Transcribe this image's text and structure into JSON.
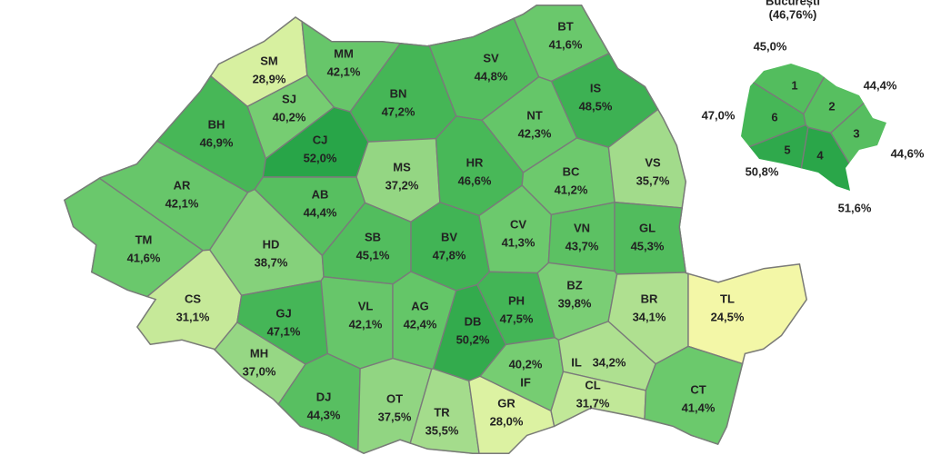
{
  "map": {
    "regions": {
      "codes": [
        "SM",
        "MM",
        "BT",
        "SV",
        "IS",
        "SJ",
        "BN",
        "BH",
        "CJ",
        "NT",
        "MS",
        "HR",
        "BC",
        "VS",
        "AR",
        "AB",
        "TM",
        "HD",
        "SB",
        "BV",
        "CV",
        "VN",
        "GL",
        "CS",
        "GJ",
        "VL",
        "AG",
        "DB",
        "PH",
        "BZ",
        "BR",
        "TL",
        "MH",
        "DJ",
        "OT",
        "TR",
        "GR",
        "IF",
        "IL",
        "CL",
        "CT"
      ],
      "values": [
        28.9,
        42.1,
        41.6,
        44.8,
        48.5,
        40.2,
        47.2,
        46.9,
        52.0,
        42.3,
        37.2,
        46.6,
        41.2,
        35.7,
        42.1,
        44.4,
        41.6,
        38.7,
        45.1,
        47.8,
        41.3,
        43.7,
        45.3,
        31.1,
        47.1,
        42.1,
        42.4,
        50.2,
        47.5,
        39.8,
        34.1,
        24.5,
        37.0,
        44.3,
        37.5,
        35.5,
        28.0,
        40.2,
        34.2,
        31.7,
        41.4
      ],
      "value_labels": [
        "28,9%",
        "42,1%",
        "41,6%",
        "44,8%",
        "48,5%",
        "40,2%",
        "47,2%",
        "46,9%",
        "52,0%",
        "42,3%",
        "37,2%",
        "46,6%",
        "41,2%",
        "35,7%",
        "42,1%",
        "44,4%",
        "41,6%",
        "38,7%",
        "45,1%",
        "47,8%",
        "41,3%",
        "43,7%",
        "45,3%",
        "31,1%",
        "47,1%",
        "42,1%",
        "42,4%",
        "50,2%",
        "47,5%",
        "39,8%",
        "34,1%",
        "24,5%",
        "37,0%",
        "44,3%",
        "37,5%",
        "35,5%",
        "28,0%",
        "40,2%",
        "34,2%",
        "31,7%",
        "41,4%"
      ]
    },
    "bucharest": {
      "title": "București",
      "total_label": "(46,76%)",
      "sectors": [
        "1",
        "2",
        "3",
        "4",
        "5",
        "6"
      ],
      "values": [
        45.0,
        44.4,
        44.6,
        51.6,
        50.8,
        47.0
      ],
      "value_labels": [
        "45,0%",
        "44,4%",
        "44,6%",
        "51,6%",
        "50,8%",
        "47,0%"
      ]
    }
  }
}
